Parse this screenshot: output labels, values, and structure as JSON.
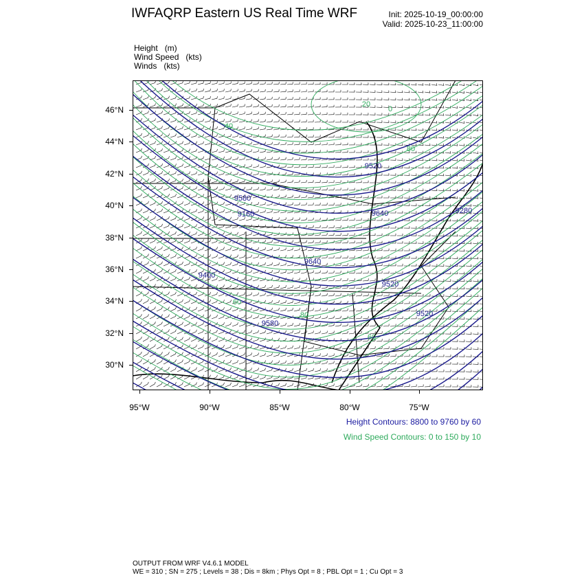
{
  "header": {
    "title": "IWFAQRP Eastern US Real Time WRF",
    "init": "Init: 2025-10-19_00:00:00",
    "valid": "Valid: 2025-10-23_11:00:00"
  },
  "fields": [
    "Height   (m)",
    "Wind Speed   (kts)",
    "Winds   (kts)"
  ],
  "map": {
    "lat_labels": [
      "46°N",
      "44°N",
      "42°N",
      "40°N",
      "38°N",
      "36°N",
      "34°N",
      "32°N",
      "30°N"
    ],
    "lon_labels": [
      "95°W",
      "90°W",
      "85°W",
      "80°W",
      "75°W"
    ],
    "height_contour_labels": [
      "9520",
      "9280",
      "9640",
      "9160",
      "9580",
      "9400",
      "9640",
      "9520",
      "9520",
      "9580"
    ],
    "wind_contour_labels": [
      "20",
      "0",
      "40",
      "80",
      "60",
      "60",
      "80"
    ],
    "colors": {
      "height": "#1a1a8c",
      "wind": "#2eaa5c",
      "barbs": "#000000",
      "borders": "#000000"
    }
  },
  "legend": {
    "height_contours": "Height Contours: 8800 to 9760 by 60",
    "wind_contours": "Wind Speed Contours: 0 to 150 by 10"
  },
  "footer": {
    "line1": "OUTPUT FROM WRF V4.6.1 MODEL",
    "line2": "WE = 310 ; SN = 275 ; Levels = 38 ; Dis = 8km ; Phys Opt = 8 ; PBL Opt = 1 ; Cu Opt = 3"
  }
}
